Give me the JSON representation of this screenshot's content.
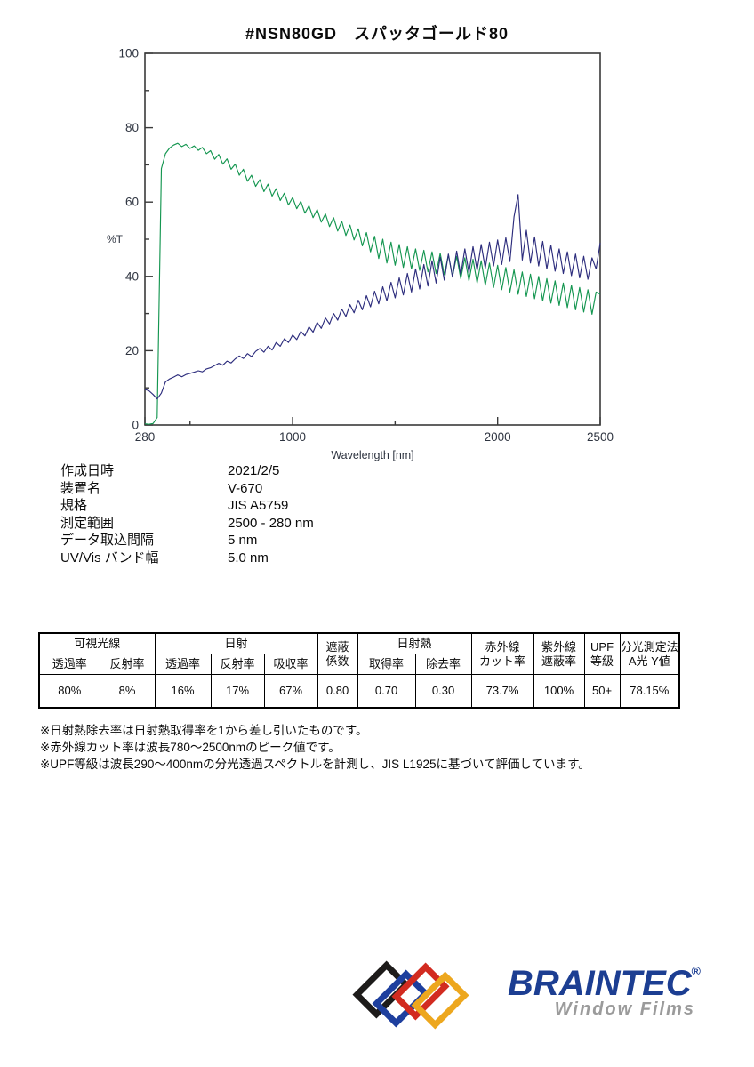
{
  "page": {
    "title": "#NSN80GD　スパッタゴールド80"
  },
  "chart_data": {
    "type": "line",
    "title": "#NSN80GD スパッタゴールド80",
    "xlabel": "Wavelength [nm]",
    "ylabel": "%T",
    "xlim": [
      280,
      2500
    ],
    "ylim": [
      0,
      100
    ],
    "grid": false,
    "legend_position": "none",
    "x_ticks": [
      [
        280,
        "280"
      ],
      [
        500,
        ""
      ],
      [
        1000,
        "1000"
      ],
      [
        1500,
        ""
      ],
      [
        2000,
        "2000"
      ],
      [
        2500,
        "2500"
      ]
    ],
    "y_ticks": [
      [
        0,
        "0"
      ],
      [
        10,
        ""
      ],
      [
        20,
        "20"
      ],
      [
        30,
        ""
      ],
      [
        40,
        "40"
      ],
      [
        50,
        ""
      ],
      [
        60,
        "60"
      ],
      [
        70,
        ""
      ],
      [
        80,
        "80"
      ],
      [
        90,
        ""
      ],
      [
        100,
        "100"
      ]
    ],
    "x_start": 280,
    "x_step": 20,
    "series": [
      {
        "name": "transmittance-green",
        "color": "#149650",
        "values": [
          0.3,
          0.2,
          0.4,
          2,
          69,
          73,
          74.5,
          75.3,
          75.8,
          74.9,
          75.5,
          74.4,
          75.1,
          73.9,
          74.7,
          73.0,
          73.8,
          71.5,
          72.8,
          70.2,
          71.6,
          68.8,
          70.2,
          67.2,
          68.8,
          65.6,
          67.2,
          64.2,
          66.0,
          62.8,
          64.8,
          61.6,
          63.6,
          60.4,
          62.4,
          59.2,
          61.2,
          58.2,
          60.2,
          57.0,
          59.0,
          55.8,
          58.0,
          54.6,
          56.8,
          53.4,
          55.8,
          52.2,
          54.8,
          51.0,
          53.8,
          49.8,
          52.8,
          48.2,
          51.8,
          46.6,
          50.8,
          44.8,
          50.0,
          43.6,
          49.2,
          43.0,
          48.6,
          42.4,
          48.0,
          42.0,
          47.4,
          41.6,
          47.0,
          41.2,
          46.6,
          40.8,
          46.2,
          40.4,
          45.8,
          40.0,
          45.4,
          39.4,
          45.0,
          38.8,
          44.6,
          38.2,
          44.2,
          37.6,
          43.6,
          37.0,
          43.0,
          36.4,
          42.4,
          35.8,
          41.8,
          35.2,
          41.2,
          34.6,
          40.6,
          34.0,
          40.0,
          33.4,
          39.4,
          32.8,
          38.8,
          32.2,
          38.2,
          31.6,
          37.6,
          31.0,
          37.0,
          30.4,
          36.4,
          29.8,
          35.8,
          35.2
        ]
      },
      {
        "name": "reflectance-blue",
        "color": "#2d2d7d",
        "values": [
          9.6,
          9.2,
          8.2,
          7.0,
          8.6,
          11.6,
          12.4,
          12.9,
          13.5,
          13.0,
          13.6,
          13.9,
          14.2,
          14.6,
          14.3,
          15.1,
          15.4,
          16.0,
          16.6,
          16.1,
          17.2,
          16.7,
          17.8,
          18.6,
          17.9,
          19.2,
          18.4,
          19.8,
          20.6,
          19.6,
          21.2,
          20.2,
          22.2,
          21.2,
          23.2,
          22.2,
          24.2,
          23.0,
          25.2,
          24.0,
          26.4,
          25.0,
          27.6,
          26.0,
          28.8,
          27.2,
          30.0,
          28.2,
          31.2,
          29.2,
          32.4,
          30.2,
          33.6,
          31.0,
          34.8,
          31.8,
          36.0,
          32.6,
          37.2,
          33.4,
          38.4,
          34.2,
          39.6,
          35.0,
          40.8,
          35.8,
          42.0,
          36.6,
          43.2,
          37.4,
          44.2,
          38.2,
          45.2,
          39.0,
          46.0,
          39.8,
          46.8,
          40.4,
          47.4,
          41.0,
          48.0,
          41.6,
          48.6,
          42.2,
          49.2,
          42.8,
          49.8,
          43.2,
          50.4,
          44.0,
          56.0,
          62.0,
          44.4,
          52.4,
          43.6,
          50.6,
          42.8,
          49.4,
          42.0,
          48.4,
          41.4,
          47.4,
          40.8,
          46.6,
          40.2,
          46.0,
          39.6,
          45.4,
          39.2,
          45.0,
          42.0,
          49.0
        ]
      }
    ]
  },
  "metadata": {
    "rows": [
      {
        "label": "作成日時",
        "value": "2021/2/5"
      },
      {
        "label": "装置名",
        "value": "V-670"
      },
      {
        "label": "規格",
        "value": "JIS A5759"
      },
      {
        "label": "測定範囲",
        "value": "2500 - 280 nm"
      },
      {
        "label": "データ取込間隔",
        "value": "5 nm"
      },
      {
        "label": "UV/Vis バンド幅",
        "value": "5.0 nm"
      }
    ]
  },
  "results_table": {
    "group_visible": "可視光線",
    "group_solar": "日射",
    "shading_line1": "遮蔽",
    "shading_line2": "係数",
    "group_solar_heat": "日射熱",
    "ir_line1": "赤外線",
    "ir_line2": "カット率",
    "uv_line1": "紫外線",
    "uv_line2": "遮蔽率",
    "upf_line1": "UPF",
    "upf_line2": "等級",
    "spectro_line1": "分光測定法",
    "spectro_line2": "A光 Y値",
    "sub_vis_trans": "透過率",
    "sub_vis_refl": "反射率",
    "sub_sol_trans": "透過率",
    "sub_sol_refl": "反射率",
    "sub_sol_abs": "吸収率",
    "sub_heat_gain": "取得率",
    "sub_heat_reject": "除去率",
    "values": {
      "vis_trans": "80%",
      "vis_refl": "8%",
      "sol_trans": "16%",
      "sol_refl": "17%",
      "sol_abs": "67%",
      "shading_coeff": "0.80",
      "heat_gain": "0.70",
      "heat_reject": "0.30",
      "ir_cut": "73.7%",
      "uv_block": "100%",
      "upf": "50+",
      "spectro_y": "78.15%"
    }
  },
  "footnotes": [
    "※日射熱除去率は日射熱取得率を1から差し引いたものです。",
    "※赤外線カット率は波長780～2500nmのピーク値です。",
    "※UPF等級は波長290～400nmの分光透過スペクトルを計測し、JIS L1925に基づいて評価しています。"
  ],
  "logo": {
    "brand": "BRAINTEC",
    "registered": "®",
    "tagline": "Window Films",
    "brand_color": "#1c3e92",
    "tagline_color": "#9b9b9b",
    "frame_colors": [
      "#1d1b1a",
      "#1e3f9e",
      "#d22b20",
      "#eda71e"
    ]
  }
}
